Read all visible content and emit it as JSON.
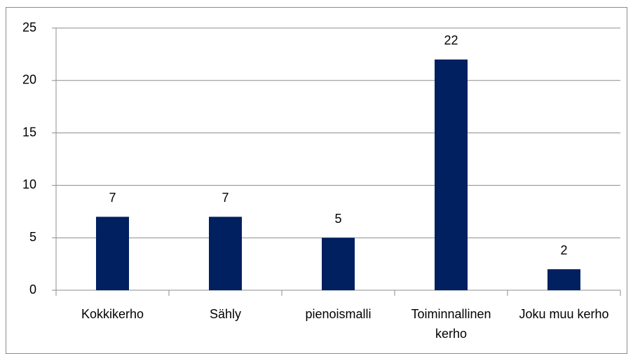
{
  "chart_data": {
    "type": "bar",
    "categories": [
      "Kokkikerho",
      "Sähly",
      "pienoismalli",
      "Toiminnallinen kerho",
      "Joku muu kerho"
    ],
    "values": [
      7,
      7,
      5,
      22,
      2
    ],
    "color": "#002060",
    "ylim": [
      0,
      25
    ],
    "yticks": [
      0,
      5,
      10,
      15,
      20,
      25
    ],
    "grid": true,
    "data_labels": true
  }
}
